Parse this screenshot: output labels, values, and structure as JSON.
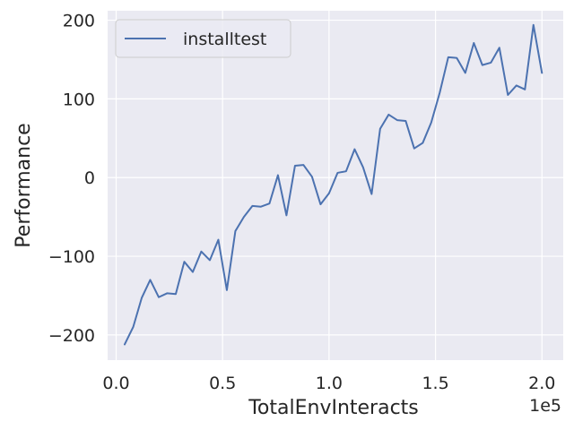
{
  "chart_data": {
    "type": "line",
    "xlabel": "TotalEnvInteracts",
    "ylabel": "Performance",
    "x_offset_label": "1e5",
    "xlim": [
      -0.04,
      2.1
    ],
    "ylim": [
      -232,
      212
    ],
    "x_ticks": [
      0.0,
      0.5,
      1.0,
      1.5,
      2.0
    ],
    "x_tick_labels": [
      "0.0",
      "0.5",
      "1.0",
      "1.5",
      "2.0"
    ],
    "y_ticks": [
      -200,
      -100,
      0,
      100,
      200
    ],
    "y_tick_labels": [
      "−200",
      "−100",
      "0",
      "100",
      "200"
    ],
    "grid": true,
    "legend_position": "top-left",
    "background": "#eaeaf2",
    "series": [
      {
        "name": "installtest",
        "color": "#4c72b0",
        "x": [
          0.04,
          0.08,
          0.12,
          0.16,
          0.2,
          0.24,
          0.28,
          0.32,
          0.36,
          0.4,
          0.44,
          0.48,
          0.52,
          0.56,
          0.6,
          0.64,
          0.68,
          0.72,
          0.76,
          0.8,
          0.84,
          0.88,
          0.92,
          0.96,
          1.0,
          1.04,
          1.08,
          1.12,
          1.16,
          1.2,
          1.24,
          1.28,
          1.32,
          1.36,
          1.4,
          1.44,
          1.48,
          1.52,
          1.56,
          1.6,
          1.64,
          1.68,
          1.72,
          1.76,
          1.8,
          1.84,
          1.88,
          1.92,
          1.96,
          2.0
        ],
        "y": [
          -212,
          -190,
          -153,
          -130,
          -152,
          -147,
          -148,
          -107,
          -120,
          -94,
          -105,
          -79,
          -143,
          -68,
          -50,
          -36,
          -37,
          -33,
          3,
          -48,
          15,
          16,
          1,
          -34,
          -20,
          6,
          8,
          36,
          13,
          -21,
          62,
          80,
          73,
          72,
          37,
          44,
          70,
          108,
          153,
          152,
          133,
          171,
          143,
          146,
          165,
          105,
          117,
          112,
          194,
          133
        ]
      }
    ]
  }
}
